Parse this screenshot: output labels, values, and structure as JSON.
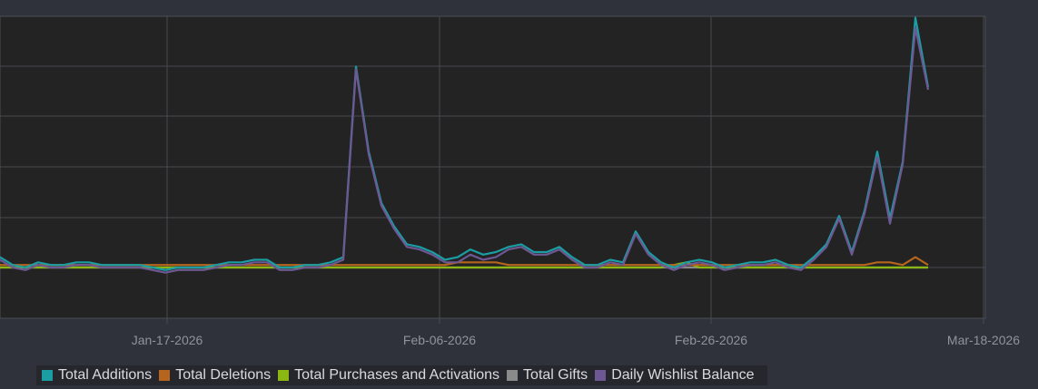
{
  "chart_data": {
    "type": "line",
    "title": "",
    "xlabel": "",
    "ylabel": "",
    "x_ticks": [
      "Jan-17-2026",
      "Feb-06-2026",
      "Feb-26-2026",
      "Mar-18-2026"
    ],
    "grid": true,
    "legend_position": "bottom",
    "series": [
      {
        "name": "Total Additions",
        "color": "#1a9da3",
        "values": [
          4,
          1,
          0,
          2,
          1,
          1,
          2,
          2,
          1,
          1,
          1,
          1,
          0,
          -1,
          0,
          0,
          0,
          1,
          2,
          2,
          3,
          3,
          0,
          0,
          1,
          1,
          2,
          4,
          78,
          45,
          25,
          16,
          9,
          8,
          6,
          3,
          4,
          7,
          5,
          6,
          8,
          9,
          6,
          6,
          8,
          4,
          1,
          1,
          3,
          2,
          14,
          6,
          2,
          0,
          2,
          3,
          2,
          0,
          1,
          2,
          2,
          3,
          1,
          0,
          4,
          9,
          20,
          6,
          22,
          45,
          19,
          41,
          97,
          70
        ]
      },
      {
        "name": "Total Deletions",
        "color": "#b5651d",
        "values": [
          1,
          1,
          1,
          1,
          1,
          1,
          1,
          1,
          1,
          1,
          1,
          1,
          1,
          1,
          1,
          1,
          1,
          1,
          1,
          1,
          1,
          1,
          1,
          1,
          1,
          1,
          1,
          1,
          1,
          1,
          1,
          1,
          1,
          1,
          1,
          1,
          2,
          2,
          2,
          2,
          1,
          1,
          1,
          1,
          1,
          1,
          1,
          1,
          1,
          1,
          1,
          1,
          1,
          1,
          1,
          1,
          1,
          1,
          1,
          1,
          1,
          1,
          1,
          1,
          1,
          1,
          1,
          1,
          1,
          2,
          2,
          1,
          4,
          1
        ]
      },
      {
        "name": "Total Purchases and Activations",
        "color": "#8ab712",
        "values": [
          0,
          0,
          0,
          0,
          0,
          0,
          0,
          0,
          0,
          0,
          0,
          0,
          0,
          0,
          0,
          0,
          0,
          0,
          0,
          0,
          0,
          0,
          0,
          0,
          0,
          0,
          0,
          0,
          0,
          0,
          0,
          0,
          0,
          0,
          0,
          0,
          0,
          0,
          0,
          0,
          0,
          0,
          0,
          0,
          0,
          0,
          0,
          0,
          0,
          0,
          0,
          0,
          0,
          1,
          2,
          0,
          0,
          0,
          0,
          0,
          0,
          0,
          0,
          0,
          0,
          0,
          0,
          0,
          0,
          0,
          0,
          0,
          0,
          0
        ]
      },
      {
        "name": "Total Gifts",
        "color": "#8a8a8a",
        "values": [
          0,
          0,
          0,
          0,
          0,
          0,
          0,
          0,
          0,
          0,
          0,
          0,
          0,
          0,
          0,
          0,
          0,
          0,
          0,
          0,
          0,
          0,
          0,
          0,
          0,
          0,
          0,
          0,
          0,
          0,
          0,
          0,
          0,
          0,
          0,
          0,
          0,
          0,
          0,
          0,
          0,
          0,
          0,
          0,
          0,
          0,
          0,
          0,
          0,
          0,
          0,
          0,
          0,
          0,
          0,
          0,
          0,
          0,
          0,
          0,
          0,
          0,
          0,
          0,
          0,
          0,
          0,
          0,
          0,
          0,
          0,
          0,
          0,
          0
        ]
      },
      {
        "name": "Daily Wishlist Balance",
        "color": "#6e5894",
        "values": [
          3,
          0,
          -1,
          1,
          0,
          0,
          1,
          1,
          0,
          0,
          0,
          0,
          -1,
          -2,
          -1,
          -1,
          -1,
          0,
          1,
          1,
          2,
          2,
          -1,
          -1,
          0,
          0,
          1,
          3,
          77,
          44,
          24,
          15,
          8,
          7,
          5,
          2,
          2,
          5,
          3,
          4,
          7,
          8,
          5,
          5,
          7,
          3,
          0,
          0,
          2,
          1,
          13,
          5,
          1,
          -1,
          1,
          2,
          1,
          -1,
          0,
          1,
          1,
          2,
          0,
          -1,
          3,
          8,
          19,
          5,
          21,
          43,
          17,
          40,
          93,
          69
        ]
      }
    ]
  }
}
